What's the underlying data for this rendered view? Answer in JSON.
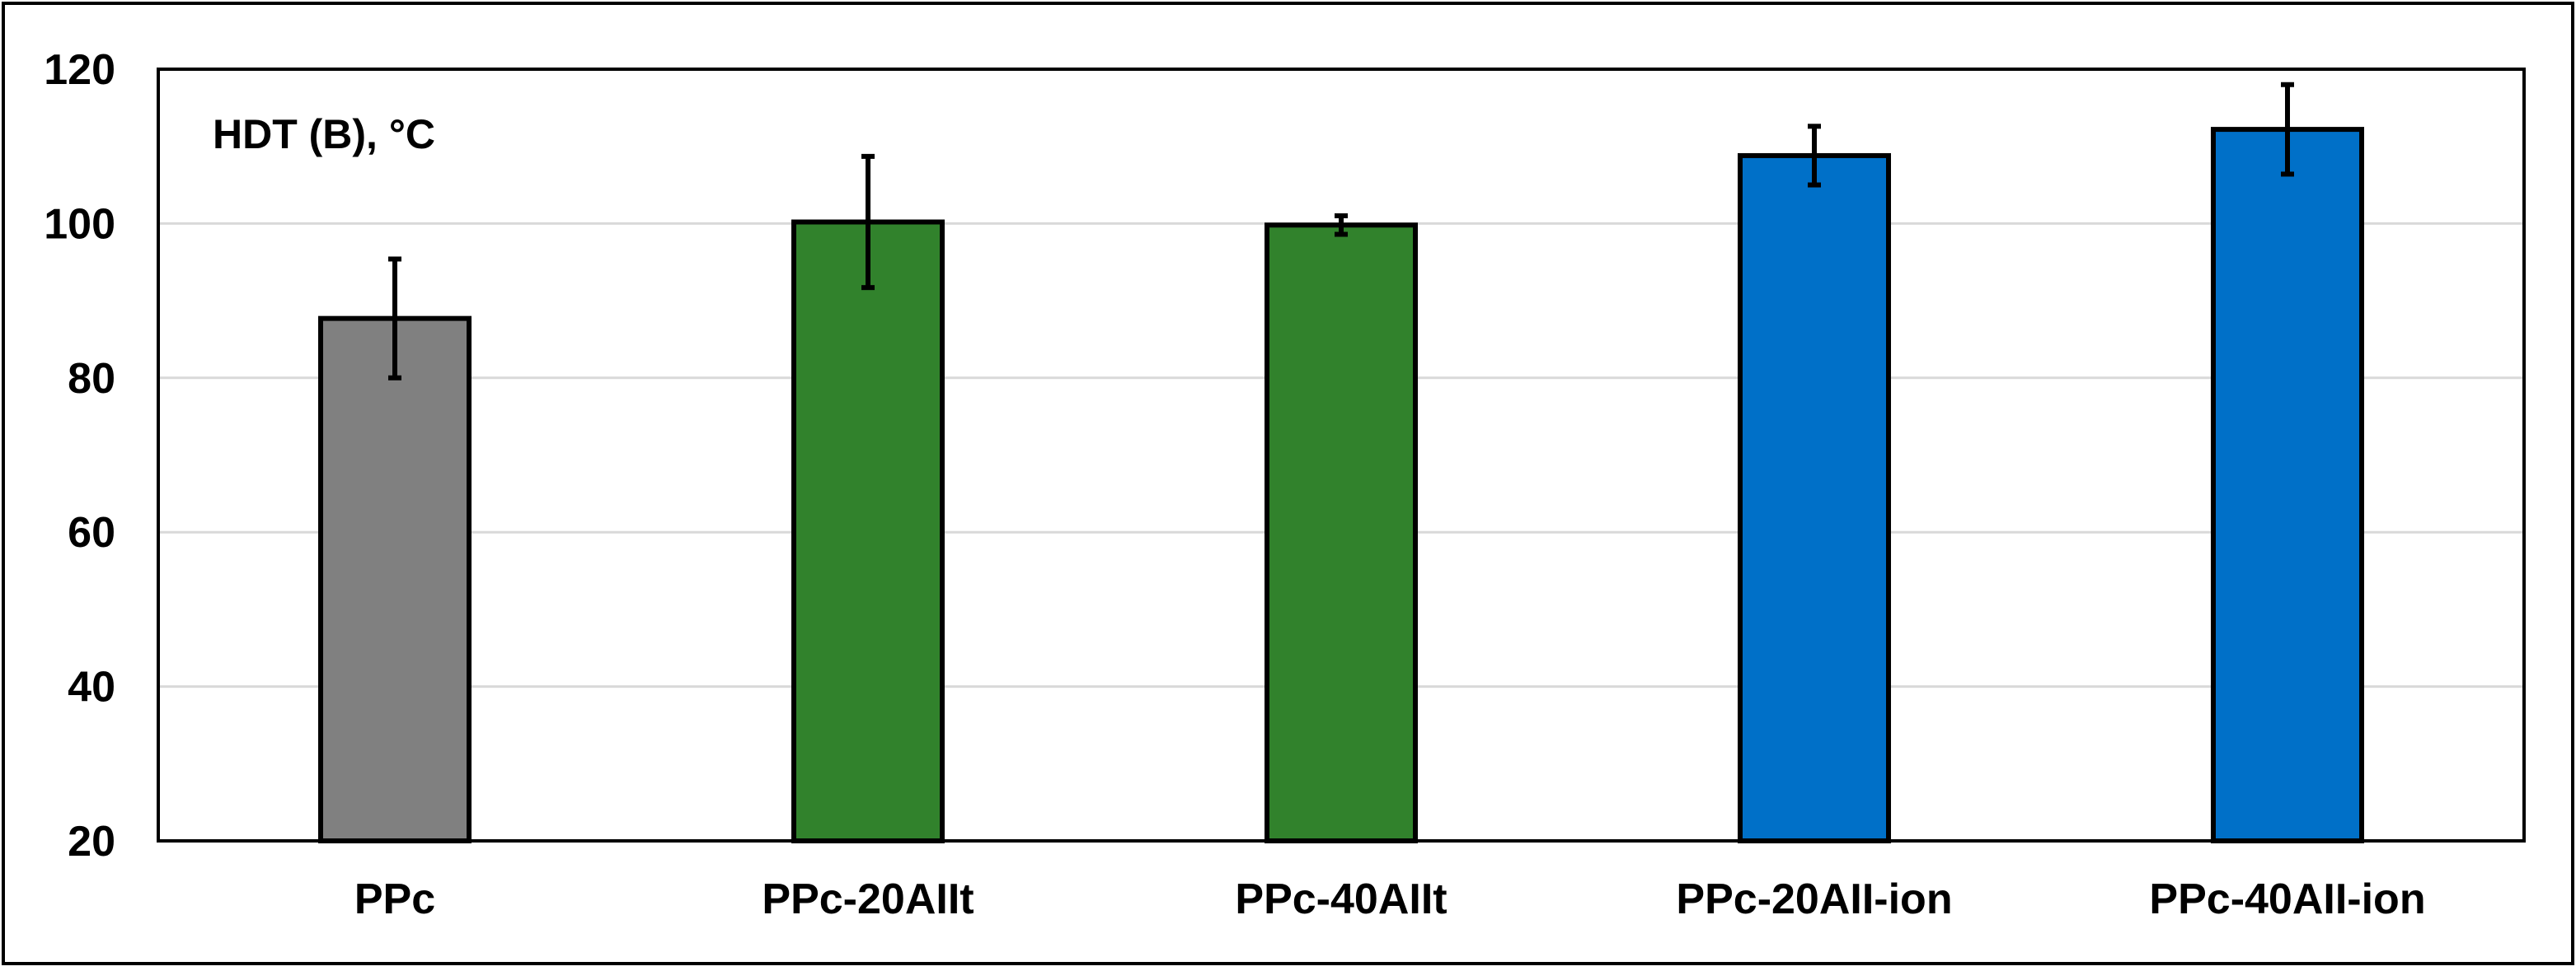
{
  "chart_data": {
    "type": "bar",
    "annotation": "HDT (B), °C",
    "categories": [
      "PPc",
      "PPc-20AIIt",
      "PPc-40AIIt",
      "PPc-20AII-ion",
      "PPc-40AII-ion"
    ],
    "values": [
      87.7,
      100.2,
      99.8,
      108.8,
      112.2
    ],
    "errors": [
      7.7,
      8.5,
      1.2,
      3.8,
      5.8
    ],
    "bar_colors": [
      "#808080",
      "#31822c",
      "#31822c",
      "#0070c8",
      "#0070c8"
    ],
    "ylim": [
      20,
      120
    ],
    "yticks": [
      "20",
      "40",
      "60",
      "80",
      "100",
      "120"
    ],
    "grid": true
  }
}
